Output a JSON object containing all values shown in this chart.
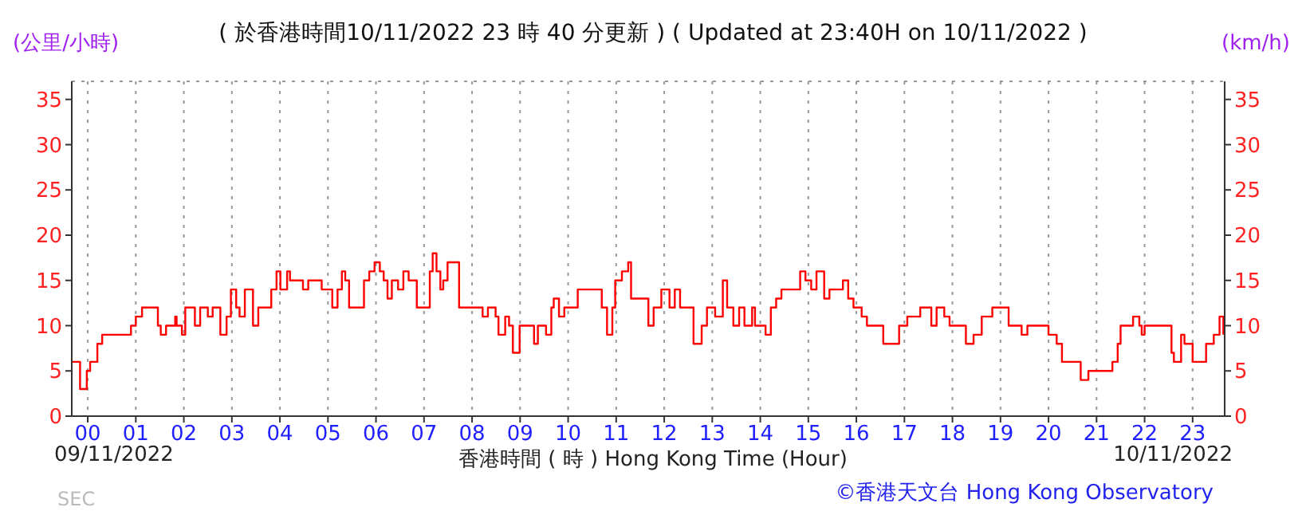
{
  "chart_data": {
    "type": "step",
    "title": "( 於香港時間10/11/2022 23 時 40 分更新 ) ( Updated at 23:40H on 10/11/2022 )",
    "ylabel": "(公里/小時)",
    "y2label": "(km/h)",
    "xlabel": "香港時間 ( 時 ) Hong Kong Time (Hour)",
    "annotations": [
      "09/11/2022",
      "10/11/2022",
      "©香港天文台 Hong Kong Observatory",
      "SEC"
    ],
    "series": [
      {
        "color": "#ff0000",
        "x": [
          -0.33,
          -0.16,
          -0.02,
          0.05,
          0.2,
          0.3,
          0.8,
          0.9,
          1.0,
          1.13,
          1.35,
          1.46,
          1.52,
          1.63,
          1.82,
          1.85,
          1.96,
          2.03,
          2.23,
          2.34,
          2.5,
          2.6,
          2.76,
          2.89,
          2.98,
          3.09,
          3.16,
          3.27,
          3.44,
          3.55,
          3.71,
          3.82,
          3.93,
          4.01,
          4.15,
          4.21,
          4.37,
          4.48,
          4.59,
          4.81,
          4.87,
          5.03,
          5.09,
          5.2,
          5.29,
          5.36,
          5.44,
          5.64,
          5.75,
          5.86,
          5.97,
          6.08,
          6.16,
          6.24,
          6.33,
          6.46,
          6.57,
          6.68,
          6.85,
          7.01,
          7.12,
          7.18,
          7.26,
          7.34,
          7.4,
          7.49,
          7.62,
          7.73,
          8.11,
          8.22,
          8.33,
          8.49,
          8.55,
          8.69,
          8.77,
          8.85,
          8.99,
          9.15,
          9.29,
          9.37,
          9.54,
          9.65,
          9.7,
          9.81,
          9.92,
          10.09,
          10.2,
          10.31,
          10.64,
          10.7,
          10.81,
          10.92,
          10.98,
          11.12,
          11.25,
          11.31,
          11.44,
          11.67,
          11.78,
          11.94,
          12.11,
          12.22,
          12.33,
          12.5,
          12.61,
          12.78,
          12.89,
          13.06,
          13.22,
          13.31,
          13.44,
          13.56,
          13.67,
          13.83,
          13.89,
          14.11,
          14.22,
          14.33,
          14.44,
          14.67,
          14.83,
          14.94,
          15.06,
          15.17,
          15.33,
          15.44,
          15.72,
          15.83,
          15.94,
          16.11,
          16.22,
          16.39,
          16.56,
          16.72,
          16.89,
          17.06,
          17.33,
          17.56,
          17.67,
          17.83,
          17.94,
          18.11,
          18.28,
          18.44,
          18.61,
          18.83,
          19.06,
          19.17,
          19.33,
          19.44,
          19.56,
          19.78,
          20.0,
          20.17,
          20.28,
          20.5,
          20.67,
          20.83,
          21.17,
          21.33,
          21.44,
          21.5,
          21.67,
          21.76,
          21.89,
          21.94,
          22.0,
          22.44,
          22.56,
          22.61,
          22.76,
          22.83,
          22.94,
          23.0,
          23.17,
          23.28,
          23.44,
          23.56,
          23.64
        ],
        "values": [
          6,
          3,
          5,
          6,
          8,
          9,
          9,
          10,
          11,
          12,
          12,
          10,
          9,
          10,
          11,
          10,
          9,
          12,
          10,
          12,
          11,
          12,
          9,
          11,
          14,
          12,
          11,
          14,
          10,
          12,
          12,
          14,
          16,
          14,
          16,
          15,
          15,
          14,
          15,
          15,
          14,
          14,
          12,
          14,
          16,
          15,
          12,
          12,
          15,
          16,
          17,
          16,
          15,
          13,
          15,
          14,
          16,
          15,
          12,
          12,
          16,
          18,
          16,
          14,
          15,
          17,
          17,
          12,
          12,
          11,
          12,
          11,
          9,
          11,
          10,
          7,
          10,
          10,
          8,
          10,
          9,
          12,
          13,
          11,
          12,
          12,
          14,
          14,
          14,
          12,
          9,
          12,
          15,
          16,
          17,
          13,
          13,
          10,
          12,
          14,
          12,
          14,
          12,
          12,
          8,
          10,
          12,
          11,
          15,
          12,
          10,
          12,
          10,
          12,
          10,
          9,
          12,
          13,
          14,
          14,
          16,
          15,
          14,
          16,
          13,
          14,
          15,
          13,
          12,
          11,
          10,
          10,
          8,
          8,
          10,
          11,
          12,
          10,
          12,
          11,
          10,
          10,
          8,
          9,
          11,
          12,
          12,
          10,
          10,
          9,
          10,
          10,
          9,
          8,
          6,
          6,
          4,
          5,
          5,
          6,
          8,
          10,
          10,
          11,
          10,
          9,
          10,
          10,
          7,
          6,
          9,
          8,
          8,
          6,
          6,
          8,
          9,
          11,
          9
        ]
      }
    ],
    "xlim": [
      -0.333,
      23.667
    ],
    "xticks": [
      {
        "value": 0,
        "label": "00"
      },
      {
        "value": 1,
        "label": "01"
      },
      {
        "value": 2,
        "label": "02"
      },
      {
        "value": 3,
        "label": "03"
      },
      {
        "value": 4,
        "label": "04"
      },
      {
        "value": 5,
        "label": "05"
      },
      {
        "value": 6,
        "label": "06"
      },
      {
        "value": 7,
        "label": "07"
      },
      {
        "value": 8,
        "label": "08"
      },
      {
        "value": 9,
        "label": "09"
      },
      {
        "value": 10,
        "label": "10"
      },
      {
        "value": 11,
        "label": "11"
      },
      {
        "value": 12,
        "label": "12"
      },
      {
        "value": 13,
        "label": "13"
      },
      {
        "value": 14,
        "label": "14"
      },
      {
        "value": 15,
        "label": "15"
      },
      {
        "value": 16,
        "label": "16"
      },
      {
        "value": 17,
        "label": "17"
      },
      {
        "value": 18,
        "label": "18"
      },
      {
        "value": 19,
        "label": "19"
      },
      {
        "value": 20,
        "label": "20"
      },
      {
        "value": 21,
        "label": "21"
      },
      {
        "value": 22,
        "label": "22"
      },
      {
        "value": 23,
        "label": "23"
      }
    ],
    "ylim": [
      0,
      37
    ],
    "yticks": [
      0,
      5,
      10,
      15,
      20,
      25,
      30,
      35
    ],
    "y2lim": [
      0,
      37
    ],
    "y2ticks": [
      0,
      5,
      10,
      15,
      20,
      25,
      30,
      35
    ],
    "grid": true,
    "legend": false,
    "marker": "none",
    "line_style": "solid"
  }
}
